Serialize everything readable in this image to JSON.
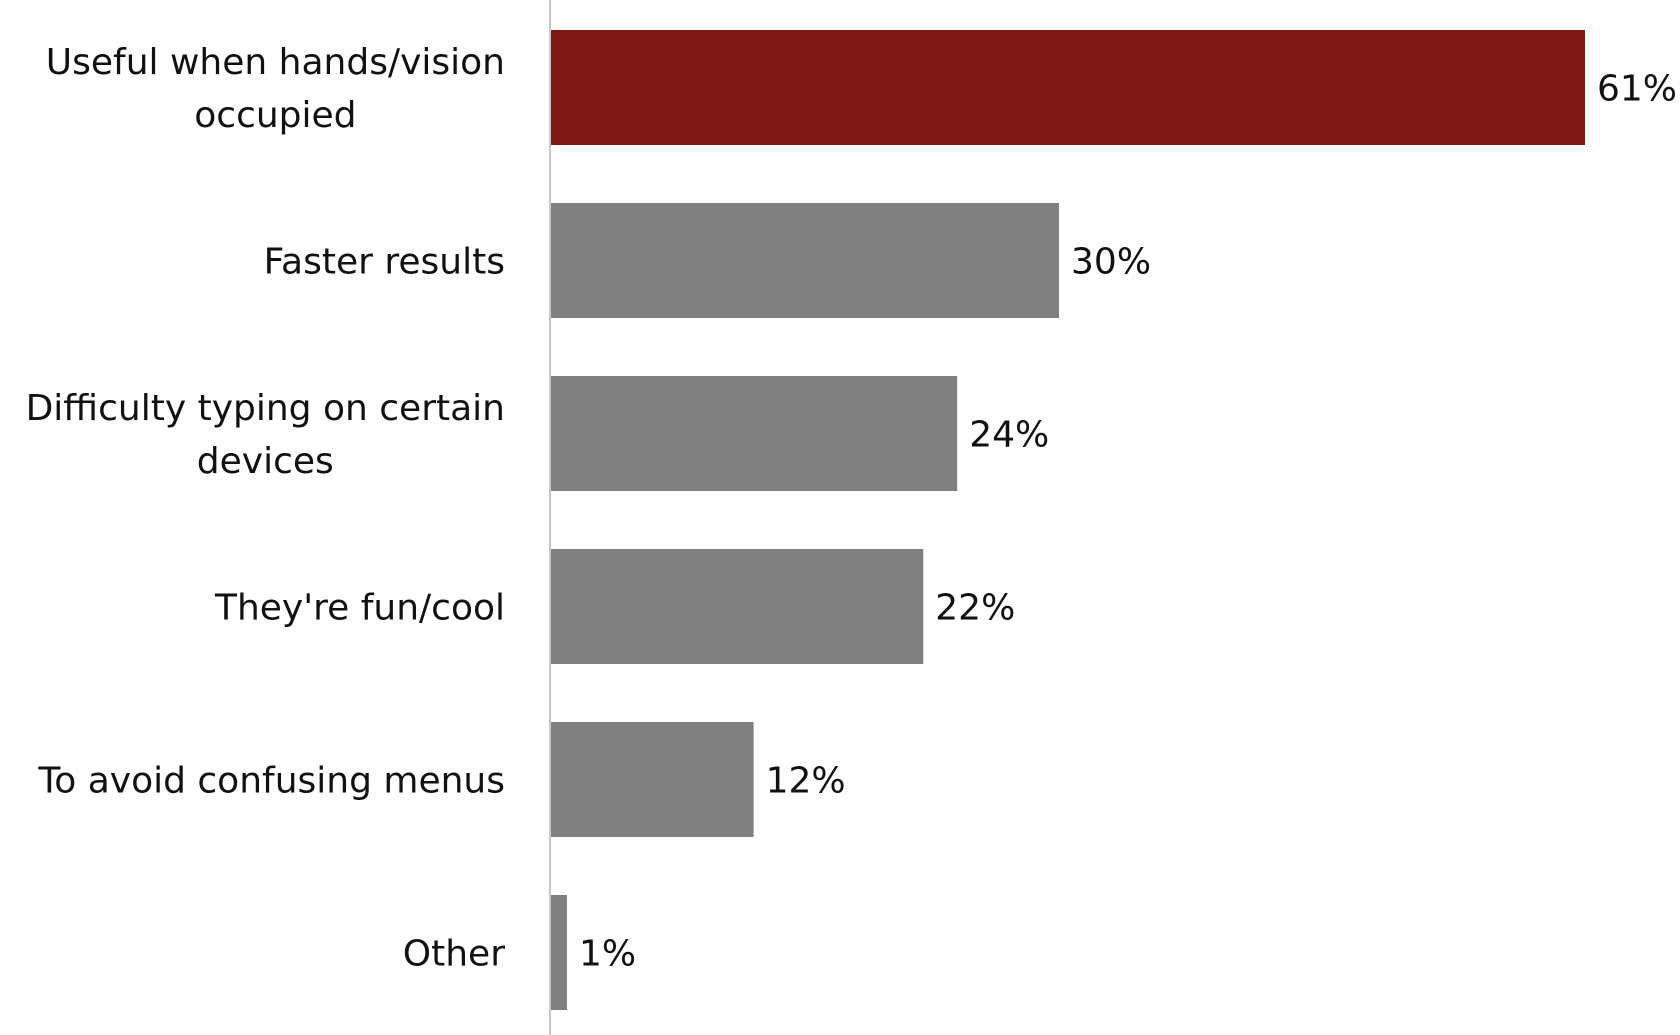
{
  "chart_data": {
    "type": "bar",
    "orientation": "horizontal",
    "categories": [
      [
        "Useful when hands/vision",
        "occupied"
      ],
      [
        "Faster results"
      ],
      [
        "Difficulty typing on certain",
        "devices"
      ],
      [
        "They're fun/cool"
      ],
      [
        "To avoid confusing menus"
      ],
      [
        "Other"
      ]
    ],
    "values": [
      61,
      30,
      24,
      22,
      12,
      1
    ],
    "value_labels": [
      "61%",
      "30%",
      "24%",
      "22%",
      "12%",
      "1%"
    ],
    "unit": "%",
    "title": "",
    "xlabel": "",
    "ylabel": "",
    "xlim": [
      0,
      61
    ],
    "grid": false,
    "legend": "none",
    "highlight_index": 0,
    "colors": {
      "highlight": "#7f1916",
      "default": "#808080",
      "axis": "#c8c8c8",
      "text": "#111111"
    }
  }
}
